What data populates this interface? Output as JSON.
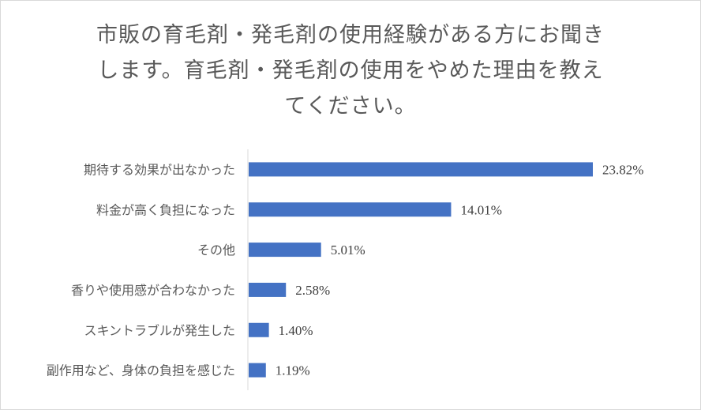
{
  "chart_data": {
    "type": "bar",
    "orientation": "horizontal",
    "title_lines": [
      "市販の育毛剤・発毛剤の使用経験がある方にお聞き",
      "します。育毛剤・発毛剤の使用をやめた理由を教え",
      "てください。"
    ],
    "categories": [
      "期待する効果が出なかった",
      "料金が高く負担になった",
      "その他",
      "香りや使用感が合わなかった",
      "スキントラブルが発生した",
      "副作用など、身体の負担を感じた"
    ],
    "values": [
      23.82,
      14.01,
      5.01,
      2.58,
      1.4,
      1.19
    ],
    "value_labels": [
      "23.82%",
      "14.01%",
      "5.01%",
      "2.58%",
      "1.40%",
      "1.19%"
    ],
    "xlim": [
      0,
      26
    ],
    "grid": false,
    "legend": "none",
    "bar_color": "#4472c4"
  }
}
